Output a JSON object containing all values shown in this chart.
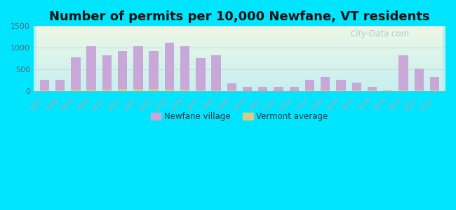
{
  "title": "Number of permits per 10,000 Newfane, VT residents",
  "years": [
    1997,
    1998,
    1999,
    2000,
    2001,
    2002,
    2003,
    2004,
    2005,
    2006,
    2007,
    2008,
    2009,
    2010,
    2011,
    2012,
    2013,
    2014,
    2015,
    2016,
    2017,
    2018,
    2019,
    2020,
    2021,
    2022
  ],
  "newfane_values": [
    250,
    250,
    770,
    1040,
    830,
    920,
    1040,
    920,
    1120,
    1040,
    760,
    830,
    170,
    100,
    100,
    100,
    100,
    250,
    330,
    250,
    200,
    100,
    0,
    830,
    510,
    330
  ],
  "vermont_values": [
    18,
    18,
    28,
    38,
    28,
    40,
    50,
    50,
    35,
    25,
    18,
    18,
    8,
    5,
    5,
    5,
    5,
    8,
    8,
    8,
    8,
    8,
    8,
    18,
    18,
    18
  ],
  "newfane_color": "#c8a8d8",
  "vermont_color": "#d4cc88",
  "ylim": [
    0,
    1500
  ],
  "yticks": [
    0,
    500,
    1000,
    1500
  ],
  "background_outer": "#00e5ff",
  "bg_top_left": "#e8f5e0",
  "bg_bottom_right": "#b8eef0",
  "title_fontsize": 13,
  "bar_width": 0.6
}
